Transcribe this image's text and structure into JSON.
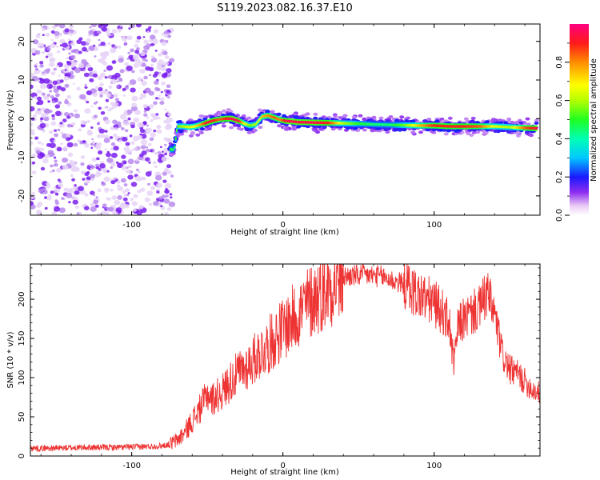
{
  "figure": {
    "title": "S119.2023.082.16.37.E10"
  },
  "chart_data": [
    {
      "type": "heatmap",
      "xlabel": "Height of straight line (km)",
      "ylabel": "Frequency (Hz)",
      "xlim": [
        -167,
        170
      ],
      "ylim": [
        -25,
        24.5
      ],
      "x_ticks": [
        -100,
        0,
        100
      ],
      "y_ticks": [
        -20,
        -10,
        0,
        10,
        20
      ],
      "noise_region_x": [
        -167,
        -75
      ],
      "ridge": {
        "x": [
          -75,
          -72,
          -70,
          -66,
          -62,
          -58,
          -54,
          -50,
          -46,
          -42,
          -38,
          -34,
          -30,
          -26,
          -22,
          -18,
          -14,
          -10,
          -6,
          -2,
          2,
          10,
          20,
          30,
          40,
          50,
          60,
          70,
          80,
          90,
          100,
          110,
          120,
          130,
          140,
          150,
          160,
          168
        ],
        "freq": [
          -8,
          -8,
          -2,
          -2,
          -2.2,
          -2,
          -1.5,
          -1,
          -0.5,
          -0.2,
          0,
          0,
          -0.5,
          -1.2,
          -1.8,
          -1.5,
          0.5,
          0.8,
          0.3,
          -0.3,
          -0.6,
          -0.9,
          -1,
          -1.1,
          -1.2,
          -1.3,
          -1.5,
          -1.6,
          -1.7,
          -1.8,
          -1.8,
          -2,
          -2,
          -2,
          -2,
          -2.2,
          -2.4,
          -2.5
        ],
        "amplitude": [
          0.5,
          0.45,
          0.55,
          0.6,
          0.65,
          0.7,
          0.8,
          0.95,
          0.9,
          0.85,
          0.9,
          0.95,
          0.95,
          0.7,
          0.55,
          0.6,
          0.75,
          0.8,
          0.85,
          0.8,
          0.95,
          0.95,
          0.95,
          0.9,
          0.6,
          0.5,
          0.45,
          0.45,
          0.55,
          0.75,
          0.9,
          0.9,
          0.9,
          0.85,
          0.65,
          0.6,
          0.85,
          0.95
        ]
      },
      "colorbar": {
        "label": "Normalized spectral amplitude",
        "range": [
          0,
          1
        ],
        "ticks": [
          "0.0",
          "0.2",
          "0.4",
          "0.6",
          "0.8"
        ]
      }
    },
    {
      "type": "line",
      "xlabel": "Height of straight line (km)",
      "ylabel": "SNR (10 * v/v)",
      "xlim": [
        -167,
        170
      ],
      "ylim": [
        0,
        245
      ],
      "x_ticks": [
        -100,
        0,
        100
      ],
      "y_ticks": [
        0,
        50,
        100,
        150,
        200
      ],
      "color": "#ee3333",
      "series": [
        {
          "x": [
            -167,
            -150,
            -130,
            -110,
            -90,
            -80,
            -75,
            -70,
            -65,
            -60,
            -55,
            -52,
            -50,
            -47,
            -45,
            -40,
            -35,
            -30,
            -25,
            -20,
            -15,
            -10,
            -5,
            0,
            5,
            10,
            15,
            20,
            25,
            30,
            35,
            40,
            45,
            50,
            55,
            60,
            65,
            70,
            75,
            80,
            85,
            90,
            95,
            100,
            105,
            110,
            113,
            116,
            120,
            125,
            130,
            135,
            140,
            145,
            150,
            155,
            160,
            165,
            170
          ],
          "y": [
            10,
            10,
            11,
            11,
            12,
            13,
            15,
            20,
            30,
            45,
            60,
            70,
            80,
            72,
            75,
            82,
            95,
            105,
            112,
            122,
            132,
            140,
            152,
            162,
            172,
            182,
            192,
            200,
            208,
            216,
            222,
            228,
            230,
            230,
            231,
            230,
            229,
            226,
            222,
            220,
            212,
            205,
            200,
            195,
            185,
            170,
            115,
            168,
            175,
            182,
            188,
            208,
            180,
            130,
            110,
            105,
            95,
            85,
            80
          ]
        }
      ]
    }
  ]
}
